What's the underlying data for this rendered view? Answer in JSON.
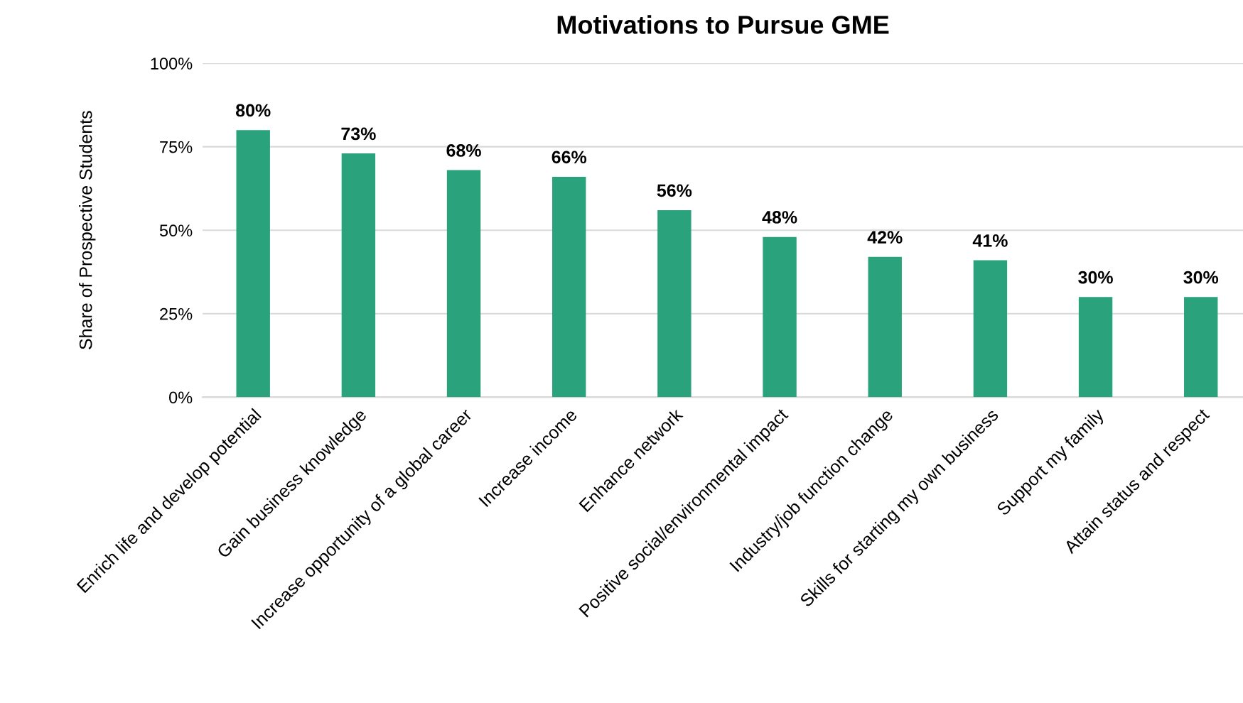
{
  "chart_data": {
    "type": "bar",
    "title": "Motivations to Pursue GME",
    "ylabel": "Share of Prospective Students",
    "categories": [
      "Enrich life and develop potential",
      "Gain business knowledge",
      "Increase opportunity of a global career",
      "Increase income",
      "Enhance network",
      "Positive social/environmental impact",
      "Industry/job function change",
      "Skills for starting my own business",
      "Support my family",
      "Attain status and respect"
    ],
    "values": [
      80,
      73,
      68,
      66,
      56,
      48,
      42,
      41,
      30,
      30
    ],
    "value_labels": [
      "80%",
      "73%",
      "68%",
      "66%",
      "56%",
      "48%",
      "42%",
      "41%",
      "30%",
      "30%"
    ],
    "color": "#2aa37c",
    "ylim": [
      0,
      100
    ],
    "yticks": [
      {
        "value": 0,
        "label": "0%"
      },
      {
        "value": 25,
        "label": "25%"
      },
      {
        "value": 50,
        "label": "50%"
      },
      {
        "value": 75,
        "label": "75%"
      },
      {
        "value": 100,
        "label": "100%"
      }
    ],
    "grid": "y",
    "legend": false
  }
}
